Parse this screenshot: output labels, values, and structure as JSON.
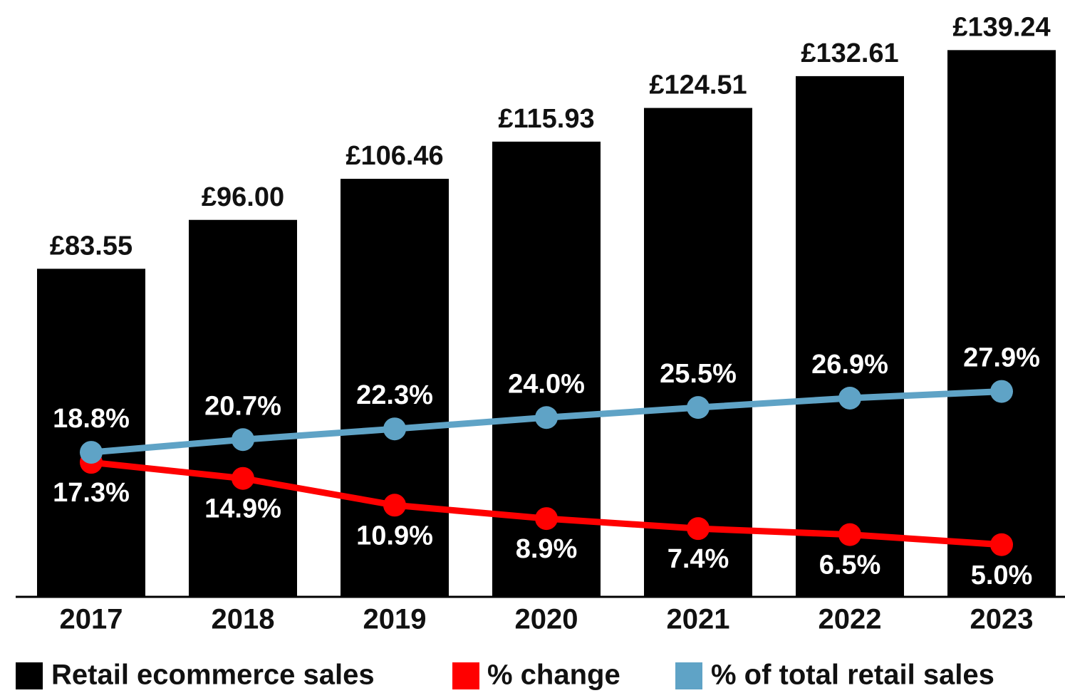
{
  "chart_data": {
    "type": "bar",
    "categories": [
      "2017",
      "2018",
      "2019",
      "2020",
      "2021",
      "2022",
      "2023"
    ],
    "series": [
      {
        "name": "Retail ecommerce sales",
        "type": "bar",
        "color": "#000000",
        "values": [
          83.55,
          96.0,
          106.46,
          115.93,
          124.51,
          132.61,
          139.24
        ],
        "value_labels": [
          "£83.55",
          "£96.00",
          "£106.46",
          "£115.93",
          "£124.51",
          "£132.61",
          "£139.24"
        ]
      },
      {
        "name": "% change",
        "type": "line",
        "axis": "y2",
        "color": "#ff0000",
        "values": [
          17.3,
          14.9,
          10.9,
          8.9,
          7.4,
          6.5,
          5.0
        ],
        "value_labels": [
          "17.3%",
          "14.9%",
          "10.9%",
          "8.9%",
          "7.4%",
          "6.5%",
          "5.0%"
        ]
      },
      {
        "name": "% of total retail sales",
        "type": "line",
        "axis": "y2",
        "color": "#5fa3c6",
        "values": [
          18.8,
          20.7,
          22.3,
          24.0,
          25.5,
          26.9,
          27.9
        ],
        "value_labels": [
          "18.8%",
          "20.7%",
          "22.3%",
          "24.0%",
          "25.5%",
          "26.9%",
          "27.9%"
        ]
      }
    ],
    "ylim": [
      0,
      152
    ],
    "y2lim": [
      -2.8,
      86.4
    ],
    "legend": "bottom"
  }
}
